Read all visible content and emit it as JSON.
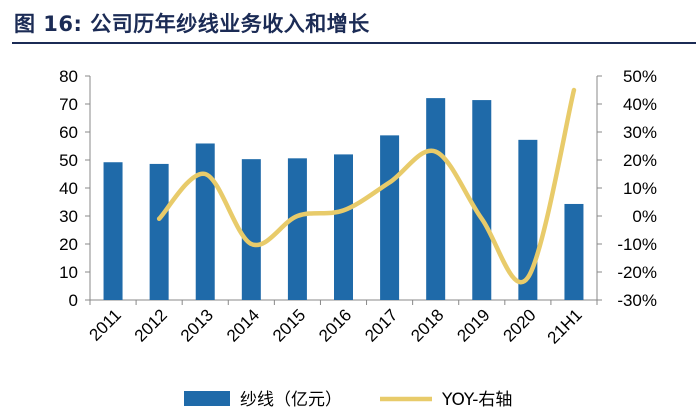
{
  "figure": {
    "title": "图 16: 公司历年纱线业务收入和增长"
  },
  "colors": {
    "bar": "#1f6aa9",
    "line": "#e8cb6a",
    "title": "#1b2b55",
    "axis": "#888888"
  },
  "chart_data": {
    "type": "bar",
    "title": "",
    "categories": [
      "2011",
      "2012",
      "2013",
      "2014",
      "2015",
      "2016",
      "2017",
      "2018",
      "2019",
      "2020",
      "21H1"
    ],
    "series": [
      {
        "name": "纱线（亿元）",
        "type": "bar",
        "axis": "left",
        "values": [
          49.2,
          48.6,
          55.9,
          50.3,
          50.6,
          52.0,
          58.8,
          72.1,
          71.4,
          57.2,
          34.3
        ]
      },
      {
        "name": "YOY-右轴",
        "type": "line",
        "axis": "right",
        "values": [
          null,
          -1,
          15,
          -10,
          0,
          2,
          12,
          23,
          -1,
          -22,
          45
        ]
      }
    ],
    "y_left": {
      "min": 0,
      "max": 80,
      "step": 10,
      "tick_labels": [
        "0",
        "10",
        "20",
        "30",
        "40",
        "50",
        "60",
        "70",
        "80"
      ]
    },
    "y_right": {
      "min": -30,
      "max": 50,
      "step": 10,
      "tick_labels": [
        "-30%",
        "-20%",
        "-10%",
        "0%",
        "10%",
        "20%",
        "30%",
        "40%",
        "50%"
      ]
    },
    "xlabel": "",
    "ylabel": "",
    "grid": false,
    "legend_position": "bottom"
  }
}
